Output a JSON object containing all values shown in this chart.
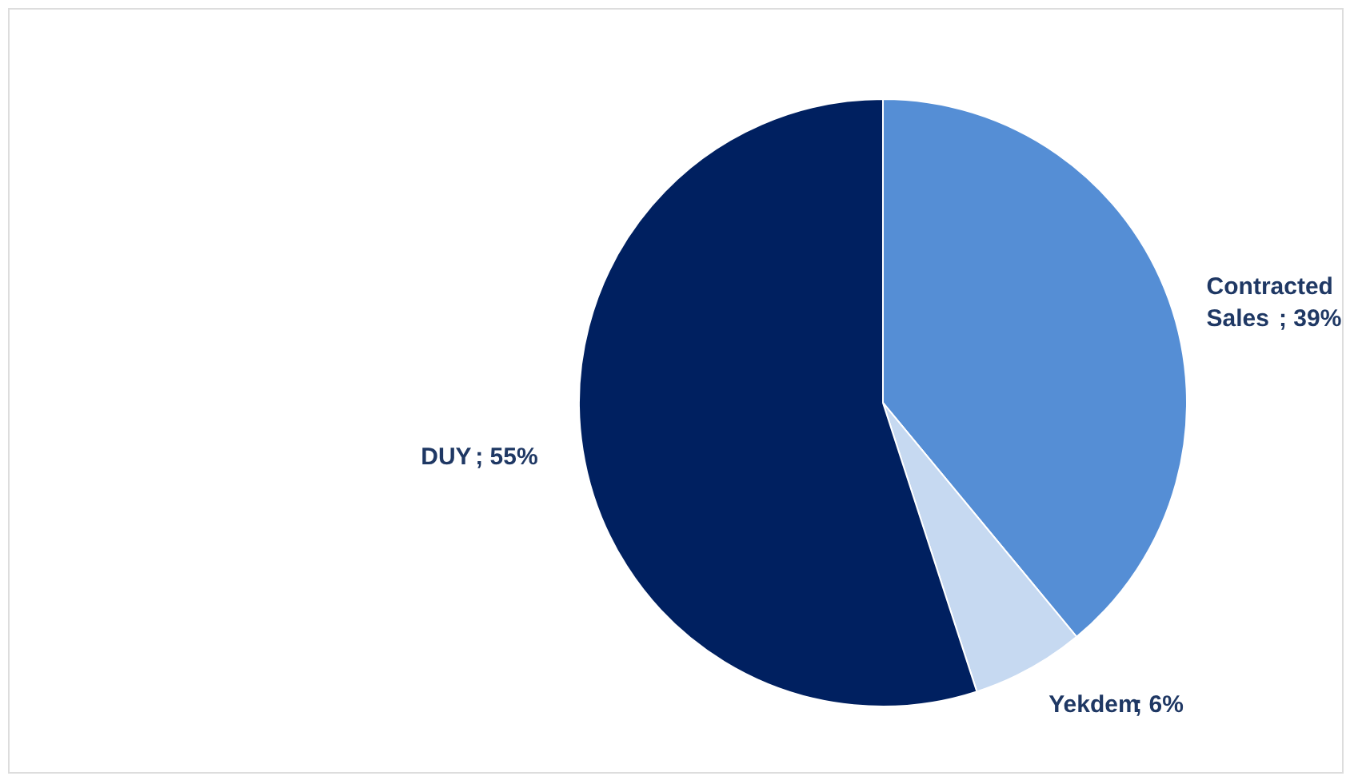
{
  "chart_data": {
    "type": "pie",
    "categories": [
      "Contracted Sales",
      "Yekdem",
      "DUY"
    ],
    "values": [
      39,
      6,
      55
    ],
    "colors": [
      "#558ed5",
      "#c6d9f1",
      "#002060"
    ],
    "value_labels": [
      "; 39%",
      "; 6%",
      "; 55%"
    ]
  }
}
